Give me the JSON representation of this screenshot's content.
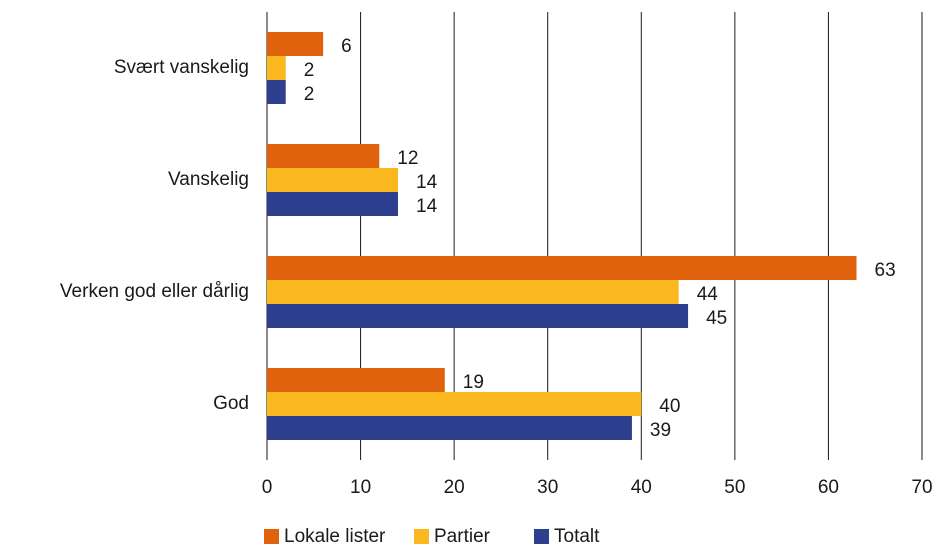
{
  "chart_data": {
    "type": "bar",
    "orientation": "horizontal",
    "categories": [
      "Svært vanskelig",
      "Vanskelig",
      "Verken god eller dårlig",
      "God"
    ],
    "series": [
      {
        "name": "Lokale lister",
        "color": "#e0620d",
        "values": [
          6,
          12,
          63,
          19
        ]
      },
      {
        "name": "Partier",
        "color": "#fbb81e",
        "values": [
          2,
          14,
          44,
          40
        ]
      },
      {
        "name": "Totalt",
        "color": "#2e3f8f",
        "values": [
          2,
          14,
          45,
          39
        ]
      }
    ],
    "xlim": [
      0,
      70
    ],
    "xticks": [
      0,
      10,
      20,
      30,
      40,
      50,
      60,
      70
    ],
    "grid": true,
    "legend": "bottom"
  }
}
